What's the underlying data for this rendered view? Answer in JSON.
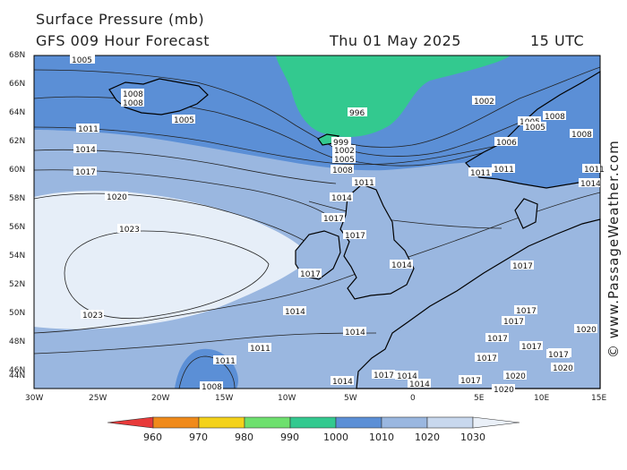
{
  "header": {
    "line1": "Surface Pressure (mb)",
    "line2": "GFS 009 Hour Forecast",
    "date": "Thu 01 May 2025",
    "time": "15 UTC"
  },
  "credit": "© www.PassageWeather.com",
  "axes": {
    "lat_labels": [
      "68N",
      "66N",
      "64N",
      "62N",
      "60N",
      "58N",
      "56N",
      "54N",
      "52N",
      "50N",
      "48N",
      "46N",
      "44N"
    ],
    "lon_labels": [
      "30W",
      "25W",
      "20W",
      "15W",
      "10W",
      "5W",
      "0",
      "5E",
      "10E",
      "15E"
    ]
  },
  "colorbar": {
    "labels": [
      "960",
      "970",
      "980",
      "990",
      "1000",
      "1010",
      "1020",
      "1030"
    ],
    "colors": [
      "#e83a3a",
      "#f08a1a",
      "#f4d21a",
      "#6ee06e",
      "#33c98f",
      "#5b8fd6",
      "#9ab7e0",
      "#c8d8ee",
      "#eaf0f8"
    ]
  },
  "map_colors": {
    "low_996": "#33c98f",
    "band_1000_1010": "#5b8fd6",
    "band_1010_1020": "#9ab7e0",
    "band_1020_1030": "#e6eef8",
    "land_outline": "#000000"
  },
  "isobar_labels": {
    "l1005a": "1005",
    "l1008a": "1008",
    "l1008b": "1008",
    "l1005b": "1005",
    "l996": "996",
    "l1002a": "1002",
    "l1005c": "1005",
    "l1008c": "1008",
    "l1008d": "1008",
    "l1005d": "1005",
    "l1011a": "1011",
    "l1014a": "1014",
    "l1017a": "1017",
    "l1020": "1020",
    "l1023a": "1023",
    "l1023b": "1023",
    "l999": "999",
    "l1002b": "1002",
    "l1005e": "1005",
    "l1008e": "1008",
    "l1011b": "1011",
    "l1014b": "1014",
    "l1017b": "1017",
    "l1017c": "1017",
    "l1017d": "1017",
    "l1014c": "1014",
    "l1014d": "1014",
    "l1017e": "1017",
    "l1011c": "1011",
    "l1011d": "1011",
    "l1008f": "1008",
    "l1017f": "1017",
    "l1014e": "1014",
    "l1014f": "1014",
    "l1014g": "1014",
    "l1014h": "1014",
    "l1017g": "1017",
    "l1020a": "1020",
    "l1020b": "1020",
    "l1017h": "1017",
    "l1006": "1006",
    "l1011e": "1011",
    "l1011f": "1011",
    "l1011g": "1011",
    "l1014i": "1014",
    "l1020c": "1020",
    "l1020d": "1020",
    "l1017i": "1017",
    "l1017j": "1017",
    "l1017k": "1017",
    "l1017l": "1017",
    "l1017m": "1017",
    "l1017n": "1017"
  }
}
